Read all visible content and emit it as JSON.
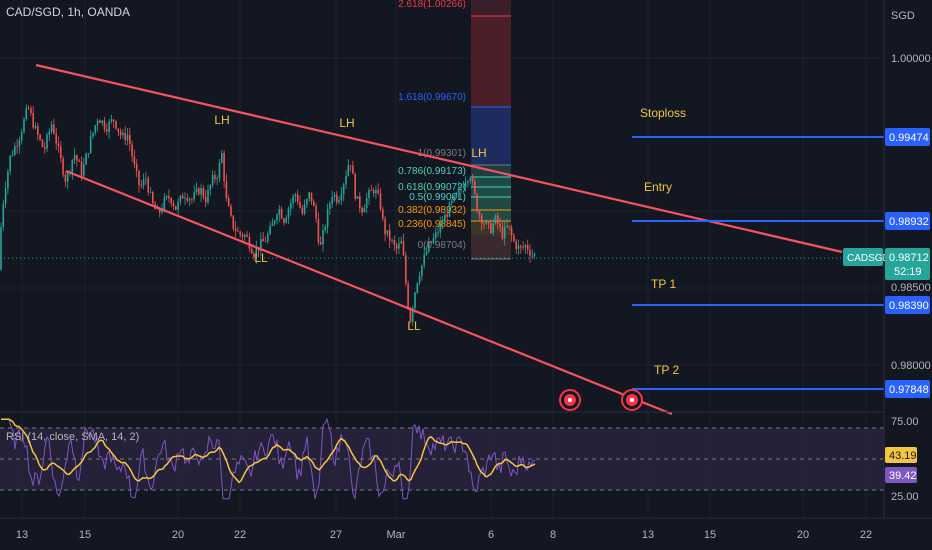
{
  "header": {
    "symbol_title": "CAD/SGD, 1h, OANDA"
  },
  "price_axis": {
    "currency": "SGD",
    "ticks": [
      "1.00000",
      "0.98500",
      "0.98000"
    ]
  },
  "rsi_panel": {
    "label": "RSI (14, close, SMA, 14, 2)",
    "ticks": [
      "75.00",
      "25.00"
    ],
    "rsi_value": "39.42",
    "ma_value": "43.19"
  },
  "x_axis": {
    "ticks": [
      "13",
      "15",
      "20",
      "22",
      "27",
      "Mar",
      "6",
      "8",
      "13",
      "15",
      "20",
      "22"
    ]
  },
  "current_price": {
    "symbol": "CADSGD",
    "price": "0.98712",
    "countdown": "52:19"
  },
  "annotations": {
    "swings": [
      "LH",
      "LH",
      "LH",
      "LL",
      "LL"
    ],
    "levels": [
      {
        "label": "Stoploss",
        "price": "0.99474"
      },
      {
        "label": "Entry",
        "price": "0.98932"
      },
      {
        "label": "TP 1",
        "price": "0.98390"
      },
      {
        "label": "TP 2",
        "price": "0.97848"
      }
    ]
  },
  "fibonacci": [
    {
      "label": "2.618(1.00266)",
      "color": "#f23645"
    },
    {
      "label": "1.618(0.99670)",
      "color": "#2962ff"
    },
    {
      "label": "1(0.99301)",
      "color": "#787b86"
    },
    {
      "label": "0.786(0.99173)",
      "color": "#4dd0c0"
    },
    {
      "label": "0.618(0.99072)",
      "color": "#4dd0c0"
    },
    {
      "label": "0.5(0.99001)",
      "color": "#4dd0c0"
    },
    {
      "label": "0.382(0.98932)",
      "color": "#ff9800"
    },
    {
      "label": "0.236(0.98845)",
      "color": "#ff9800"
    },
    {
      "label": "0(0.98704)",
      "color": "#787b86"
    }
  ],
  "colors": {
    "background": "#131722",
    "up": "#26a69a",
    "down": "#ef5350",
    "trendline": "#f7525f",
    "level_line": "#2962ff",
    "annotation_text": "#f5c542",
    "rsi_line": "#7e57c2",
    "rsi_ma": "#f5c542"
  },
  "chart_data": {
    "type": "candlestick",
    "title": "CAD/SGD, 1h, OANDA",
    "y_unit": "SGD",
    "y_range_visible": [
      0.9755,
      1.004
    ],
    "current_price": 0.98712,
    "price_path": [
      [
        0,
        0.9862
      ],
      [
        1,
        0.989
      ],
      [
        4,
        0.9912
      ],
      [
        10,
        0.9935
      ],
      [
        20,
        0.995
      ],
      [
        28,
        0.9968
      ],
      [
        36,
        0.9952
      ],
      [
        44,
        0.994
      ],
      [
        52,
        0.9958
      ],
      [
        60,
        0.9935
      ],
      [
        66,
        0.992
      ],
      [
        74,
        0.9938
      ],
      [
        82,
        0.9925
      ],
      [
        90,
        0.9945
      ],
      [
        98,
        0.9962
      ],
      [
        106,
        0.9955
      ],
      [
        114,
        0.996
      ],
      [
        122,
        0.9948
      ],
      [
        128,
        0.995
      ],
      [
        134,
        0.993
      ],
      [
        140,
        0.9915
      ],
      [
        146,
        0.9922
      ],
      [
        152,
        0.9905
      ],
      [
        158,
        0.9898
      ],
      [
        164,
        0.9906
      ],
      [
        170,
        0.991
      ],
      [
        176,
        0.9902
      ],
      [
        184,
        0.9912
      ],
      [
        192,
        0.9908
      ],
      [
        200,
        0.9915
      ],
      [
        206,
        0.9908
      ],
      [
        212,
        0.992
      ],
      [
        218,
        0.9925
      ],
      [
        222,
        0.9938
      ],
      [
        226,
        0.9908
      ],
      [
        232,
        0.9892
      ],
      [
        238,
        0.9886
      ],
      [
        246,
        0.9884
      ],
      [
        254,
        0.9873
      ],
      [
        260,
        0.9878
      ],
      [
        266,
        0.9882
      ],
      [
        272,
        0.989
      ],
      [
        278,
        0.9903
      ],
      [
        284,
        0.9895
      ],
      [
        290,
        0.9905
      ],
      [
        296,
        0.9912
      ],
      [
        302,
        0.9898
      ],
      [
        310,
        0.9912
      ],
      [
        316,
        0.9896
      ],
      [
        320,
        0.9875
      ],
      [
        326,
        0.9894
      ],
      [
        332,
        0.9912
      ],
      [
        338,
        0.9908
      ],
      [
        344,
        0.992
      ],
      [
        350,
        0.9935
      ],
      [
        356,
        0.9908
      ],
      [
        362,
        0.9902
      ],
      [
        368,
        0.991
      ],
      [
        374,
        0.9915
      ],
      [
        380,
        0.9906
      ],
      [
        384,
        0.9888
      ],
      [
        390,
        0.9882
      ],
      [
        396,
        0.9875
      ],
      [
        402,
        0.988
      ],
      [
        406,
        0.9852
      ],
      [
        410,
        0.9828
      ],
      [
        414,
        0.9845
      ],
      [
        418,
        0.9858
      ],
      [
        422,
        0.9865
      ],
      [
        428,
        0.9877
      ],
      [
        434,
        0.9882
      ],
      [
        440,
        0.989
      ],
      [
        446,
        0.9898
      ],
      [
        452,
        0.9905
      ],
      [
        458,
        0.9912
      ],
      [
        464,
        0.992
      ],
      [
        470,
        0.9925
      ],
      [
        474,
        0.9912
      ],
      [
        478,
        0.99
      ],
      [
        484,
        0.9893
      ],
      [
        490,
        0.9888
      ],
      [
        496,
        0.9895
      ],
      [
        502,
        0.9885
      ],
      [
        508,
        0.989
      ],
      [
        514,
        0.988
      ],
      [
        520,
        0.9875
      ],
      [
        526,
        0.9878
      ],
      [
        532,
        0.9872
      ],
      [
        536,
        0.98712
      ]
    ],
    "rsi": {
      "current": 39.42,
      "ma_current": 43.19,
      "upper_band": 75.0,
      "lower_band": 25.0,
      "levels_shown": [
        75,
        25
      ]
    },
    "fib_levels": [
      {
        "ratio": 0,
        "price": 0.98704
      },
      {
        "ratio": 0.236,
        "price": 0.98845
      },
      {
        "ratio": 0.382,
        "price": 0.98932
      },
      {
        "ratio": 0.5,
        "price": 0.99001
      },
      {
        "ratio": 0.618,
        "price": 0.99072
      },
      {
        "ratio": 0.786,
        "price": 0.99173
      },
      {
        "ratio": 1,
        "price": 0.99301
      },
      {
        "ratio": 1.618,
        "price": 0.9967
      },
      {
        "ratio": 2.618,
        "price": 1.00266
      }
    ],
    "horizontal_levels": [
      {
        "label": "Stoploss",
        "price": 0.99474
      },
      {
        "label": "Entry",
        "price": 0.98932
      },
      {
        "label": "TP 1",
        "price": 0.9839
      },
      {
        "label": "TP 2",
        "price": 0.97848
      }
    ]
  }
}
